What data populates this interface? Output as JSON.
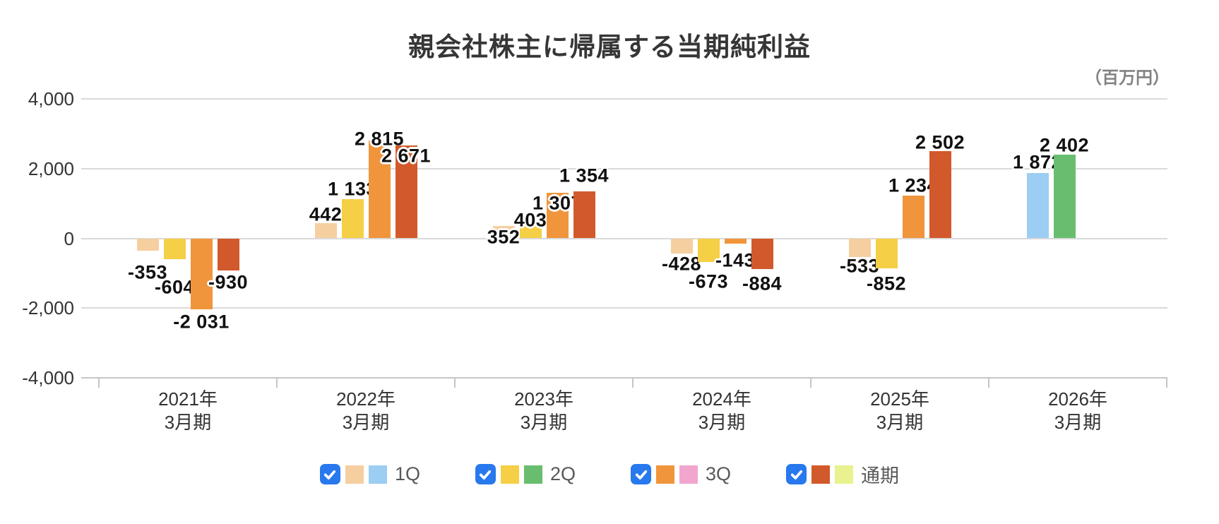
{
  "title": "親会社株主に帰属する当期純利益",
  "unit_label": "（百万円）",
  "chart_data": {
    "type": "bar",
    "title": "親会社株主に帰属する当期純利益",
    "unit": "百万円",
    "categories": [
      "2021年3月期",
      "2022年3月期",
      "2023年3月期",
      "2024年3月期",
      "2025年3月期",
      "2026年3月期"
    ],
    "category_lines": [
      [
        "2021年",
        "3月期"
      ],
      [
        "2022年",
        "3月期"
      ],
      [
        "2023年",
        "3月期"
      ],
      [
        "2024年",
        "3月期"
      ],
      [
        "2025年",
        "3月期"
      ],
      [
        "2026年",
        "3月期"
      ]
    ],
    "ylim": [
      -4000,
      4000
    ],
    "yticks": [
      {
        "value": 4000,
        "label": "4,000"
      },
      {
        "value": 2000,
        "label": "2,000"
      },
      {
        "value": 0,
        "label": "0"
      },
      {
        "value": -2000,
        "label": "-2,000"
      },
      {
        "value": -4000,
        "label": "-4,000"
      }
    ],
    "grid": true,
    "legend_position": "bottom",
    "series": [
      {
        "name": "1Q",
        "color": "#F5CFA0",
        "forecast_color": "#9CCDF2",
        "values": [
          -353,
          442,
          352,
          -428,
          -533,
          1872
        ],
        "forecast": [
          false,
          false,
          false,
          false,
          false,
          true
        ],
        "label_dy": [
          31,
          -12,
          16,
          15,
          13,
          -15
        ]
      },
      {
        "name": "2Q",
        "color": "#F5CF45",
        "forecast_color": "#68BE6E",
        "values": [
          -604,
          1133,
          403,
          -673,
          -852,
          2402
        ],
        "forecast": [
          false,
          false,
          false,
          false,
          false,
          true
        ],
        "label_dy": [
          40,
          -14,
          -6,
          28,
          22,
          -13
        ]
      },
      {
        "name": "3Q",
        "color": "#F0953C",
        "forecast_color": "#F2A6CD",
        "values": [
          -2031,
          2815,
          1307,
          -143,
          1234,
          null
        ],
        "forecast": [
          false,
          false,
          false,
          false,
          false,
          false
        ],
        "label_dy": [
          18,
          -2,
          15,
          24,
          -14,
          null
        ]
      },
      {
        "name": "通期",
        "color": "#D2592B",
        "forecast_color": "#E9F28E",
        "values": [
          -930,
          2671,
          1354,
          -884,
          2502,
          null
        ],
        "forecast": [
          false,
          false,
          false,
          false,
          false,
          false
        ],
        "label_dy": [
          17,
          15,
          -22,
          21,
          -12,
          null
        ]
      }
    ]
  },
  "legend": {
    "items": [
      {
        "label": "1Q",
        "checked": true,
        "swatches": [
          "#F5CFA0",
          "#9CCDF2"
        ]
      },
      {
        "label": "2Q",
        "checked": true,
        "swatches": [
          "#F5CF45",
          "#68BE6E"
        ]
      },
      {
        "label": "3Q",
        "checked": true,
        "swatches": [
          "#F0953C",
          "#F2A6CD"
        ]
      },
      {
        "label": "通期",
        "checked": true,
        "swatches": [
          "#D2592B",
          "#E9F28E"
        ]
      }
    ]
  },
  "colors": {
    "checkbox_blue": "#2878EE",
    "grid": "#DADADA",
    "axis": "#C6C6C6",
    "axis_text": "#333333",
    "value_label_text": "#101010",
    "legend_text": "#595959",
    "unit_text": "#828282"
  }
}
